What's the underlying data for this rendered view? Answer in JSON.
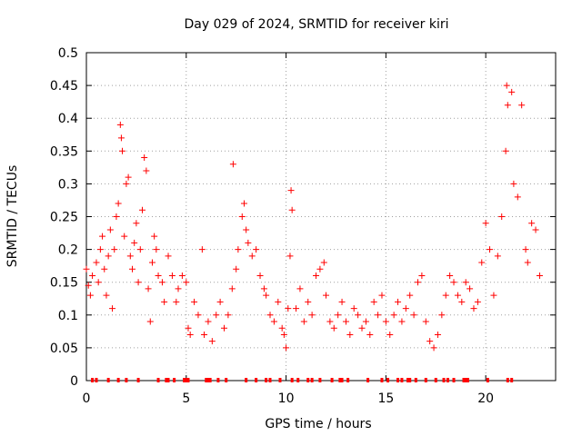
{
  "chart_data": {
    "type": "scatter",
    "title": "Day 029 of 2024, SRMTID for receiver kiri",
    "xlabel": "GPS time / hours",
    "ylabel": "SRMTID / TECUs",
    "xlim": [
      0,
      23.5
    ],
    "ylim": [
      0,
      0.5
    ],
    "xticks": [
      0,
      5,
      10,
      15,
      20
    ],
    "xtick_labels": [
      "0",
      "5",
      "10",
      "15",
      "20"
    ],
    "yticks": [
      0,
      0.05,
      0.1,
      0.15,
      0.2,
      0.25,
      0.3,
      0.35,
      0.4,
      0.45,
      0.5
    ],
    "ytick_labels": [
      "0",
      "0.05",
      "0.1",
      "0.15",
      "0.2",
      "0.25",
      "0.3",
      "0.35",
      "0.4",
      "0.45",
      "0.5"
    ],
    "grid": true,
    "marker": "+",
    "marker_color": "#ff0000",
    "series": [
      {
        "name": "SRMTID",
        "points": [
          [
            0.0,
            0.17
          ],
          [
            0.1,
            0.145
          ],
          [
            0.2,
            0.13
          ],
          [
            0.3,
            0.16
          ],
          [
            0.5,
            0.18
          ],
          [
            0.6,
            0.15
          ],
          [
            0.7,
            0.2
          ],
          [
            0.8,
            0.22
          ],
          [
            0.9,
            0.17
          ],
          [
            1.0,
            0.13
          ],
          [
            1.1,
            0.19
          ],
          [
            1.2,
            0.23
          ],
          [
            1.3,
            0.11
          ],
          [
            1.4,
            0.2
          ],
          [
            1.5,
            0.25
          ],
          [
            1.6,
            0.27
          ],
          [
            1.7,
            0.39
          ],
          [
            1.75,
            0.37
          ],
          [
            1.8,
            0.35
          ],
          [
            1.9,
            0.22
          ],
          [
            2.0,
            0.3
          ],
          [
            2.1,
            0.31
          ],
          [
            2.2,
            0.19
          ],
          [
            2.3,
            0.17
          ],
          [
            2.4,
            0.21
          ],
          [
            2.5,
            0.24
          ],
          [
            2.6,
            0.15
          ],
          [
            2.7,
            0.2
          ],
          [
            2.8,
            0.26
          ],
          [
            2.9,
            0.34
          ],
          [
            3.0,
            0.32
          ],
          [
            3.1,
            0.14
          ],
          [
            3.2,
            0.09
          ],
          [
            3.3,
            0.18
          ],
          [
            3.4,
            0.22
          ],
          [
            3.5,
            0.2
          ],
          [
            3.6,
            0.16
          ],
          [
            3.8,
            0.15
          ],
          [
            3.9,
            0.12
          ],
          [
            4.1,
            0.19
          ],
          [
            4.3,
            0.16
          ],
          [
            4.5,
            0.12
          ],
          [
            4.6,
            0.14
          ],
          [
            4.8,
            0.16
          ],
          [
            5.0,
            0.15
          ],
          [
            5.1,
            0.08
          ],
          [
            5.2,
            0.07
          ],
          [
            5.4,
            0.12
          ],
          [
            5.6,
            0.1
          ],
          [
            5.8,
            0.2
          ],
          [
            5.9,
            0.07
          ],
          [
            6.1,
            0.09
          ],
          [
            6.3,
            0.06
          ],
          [
            6.5,
            0.1
          ],
          [
            6.7,
            0.12
          ],
          [
            6.9,
            0.08
          ],
          [
            7.1,
            0.1
          ],
          [
            7.3,
            0.14
          ],
          [
            7.35,
            0.33
          ],
          [
            7.5,
            0.17
          ],
          [
            7.6,
            0.2
          ],
          [
            7.8,
            0.25
          ],
          [
            7.9,
            0.27
          ],
          [
            8.0,
            0.23
          ],
          [
            8.1,
            0.21
          ],
          [
            8.3,
            0.19
          ],
          [
            8.5,
            0.2
          ],
          [
            8.7,
            0.16
          ],
          [
            8.9,
            0.14
          ],
          [
            9.0,
            0.13
          ],
          [
            9.2,
            0.1
          ],
          [
            9.4,
            0.09
          ],
          [
            9.6,
            0.12
          ],
          [
            9.8,
            0.08
          ],
          [
            9.9,
            0.07
          ],
          [
            10.0,
            0.05
          ],
          [
            10.1,
            0.11
          ],
          [
            10.2,
            0.19
          ],
          [
            10.25,
            0.29
          ],
          [
            10.3,
            0.26
          ],
          [
            10.5,
            0.11
          ],
          [
            10.7,
            0.14
          ],
          [
            10.9,
            0.09
          ],
          [
            11.1,
            0.12
          ],
          [
            11.3,
            0.1
          ],
          [
            11.5,
            0.16
          ],
          [
            11.7,
            0.17
          ],
          [
            11.9,
            0.18
          ],
          [
            12.0,
            0.13
          ],
          [
            12.2,
            0.09
          ],
          [
            12.4,
            0.08
          ],
          [
            12.6,
            0.1
          ],
          [
            12.8,
            0.12
          ],
          [
            13.0,
            0.09
          ],
          [
            13.2,
            0.07
          ],
          [
            13.4,
            0.11
          ],
          [
            13.6,
            0.1
          ],
          [
            13.8,
            0.08
          ],
          [
            14.0,
            0.09
          ],
          [
            14.2,
            0.07
          ],
          [
            14.4,
            0.12
          ],
          [
            14.6,
            0.1
          ],
          [
            14.8,
            0.13
          ],
          [
            15.0,
            0.09
          ],
          [
            15.2,
            0.07
          ],
          [
            15.4,
            0.1
          ],
          [
            15.6,
            0.12
          ],
          [
            15.8,
            0.09
          ],
          [
            16.0,
            0.11
          ],
          [
            16.2,
            0.13
          ],
          [
            16.4,
            0.1
          ],
          [
            16.6,
            0.15
          ],
          [
            16.8,
            0.16
          ],
          [
            17.0,
            0.09
          ],
          [
            17.2,
            0.06
          ],
          [
            17.4,
            0.05
          ],
          [
            17.6,
            0.07
          ],
          [
            17.8,
            0.1
          ],
          [
            18.0,
            0.13
          ],
          [
            18.2,
            0.16
          ],
          [
            18.4,
            0.15
          ],
          [
            18.6,
            0.13
          ],
          [
            18.8,
            0.12
          ],
          [
            19.0,
            0.15
          ],
          [
            19.2,
            0.14
          ],
          [
            19.4,
            0.11
          ],
          [
            19.6,
            0.12
          ],
          [
            19.8,
            0.18
          ],
          [
            20.0,
            0.24
          ],
          [
            20.2,
            0.2
          ],
          [
            20.4,
            0.13
          ],
          [
            20.6,
            0.19
          ],
          [
            20.8,
            0.25
          ],
          [
            21.0,
            0.35
          ],
          [
            21.05,
            0.45
          ],
          [
            21.1,
            0.42
          ],
          [
            21.3,
            0.44
          ],
          [
            21.4,
            0.3
          ],
          [
            21.6,
            0.28
          ],
          [
            21.8,
            0.42
          ],
          [
            22.0,
            0.2
          ],
          [
            22.1,
            0.18
          ],
          [
            22.3,
            0.24
          ],
          [
            22.5,
            0.23
          ],
          [
            22.7,
            0.16
          ]
        ]
      }
    ],
    "axis_markers": [
      0.3,
      0.5,
      1.1,
      1.6,
      2.0,
      2.6,
      3.6,
      4.0,
      4.1,
      4.4,
      4.9,
      5.0,
      5.1,
      6.0,
      6.1,
      6.2,
      6.6,
      7.0,
      8.0,
      8.5,
      9.0,
      9.2,
      9.7,
      10.3,
      10.6,
      11.1,
      11.3,
      11.7,
      12.3,
      12.7,
      12.8,
      13.1,
      14.1,
      14.8,
      15.1,
      15.6,
      15.8,
      16.1,
      16.2,
      16.5,
      17.0,
      17.5,
      17.9,
      18.1,
      18.4,
      18.9,
      19.0,
      19.1,
      20.1,
      21.1,
      21.3
    ]
  }
}
